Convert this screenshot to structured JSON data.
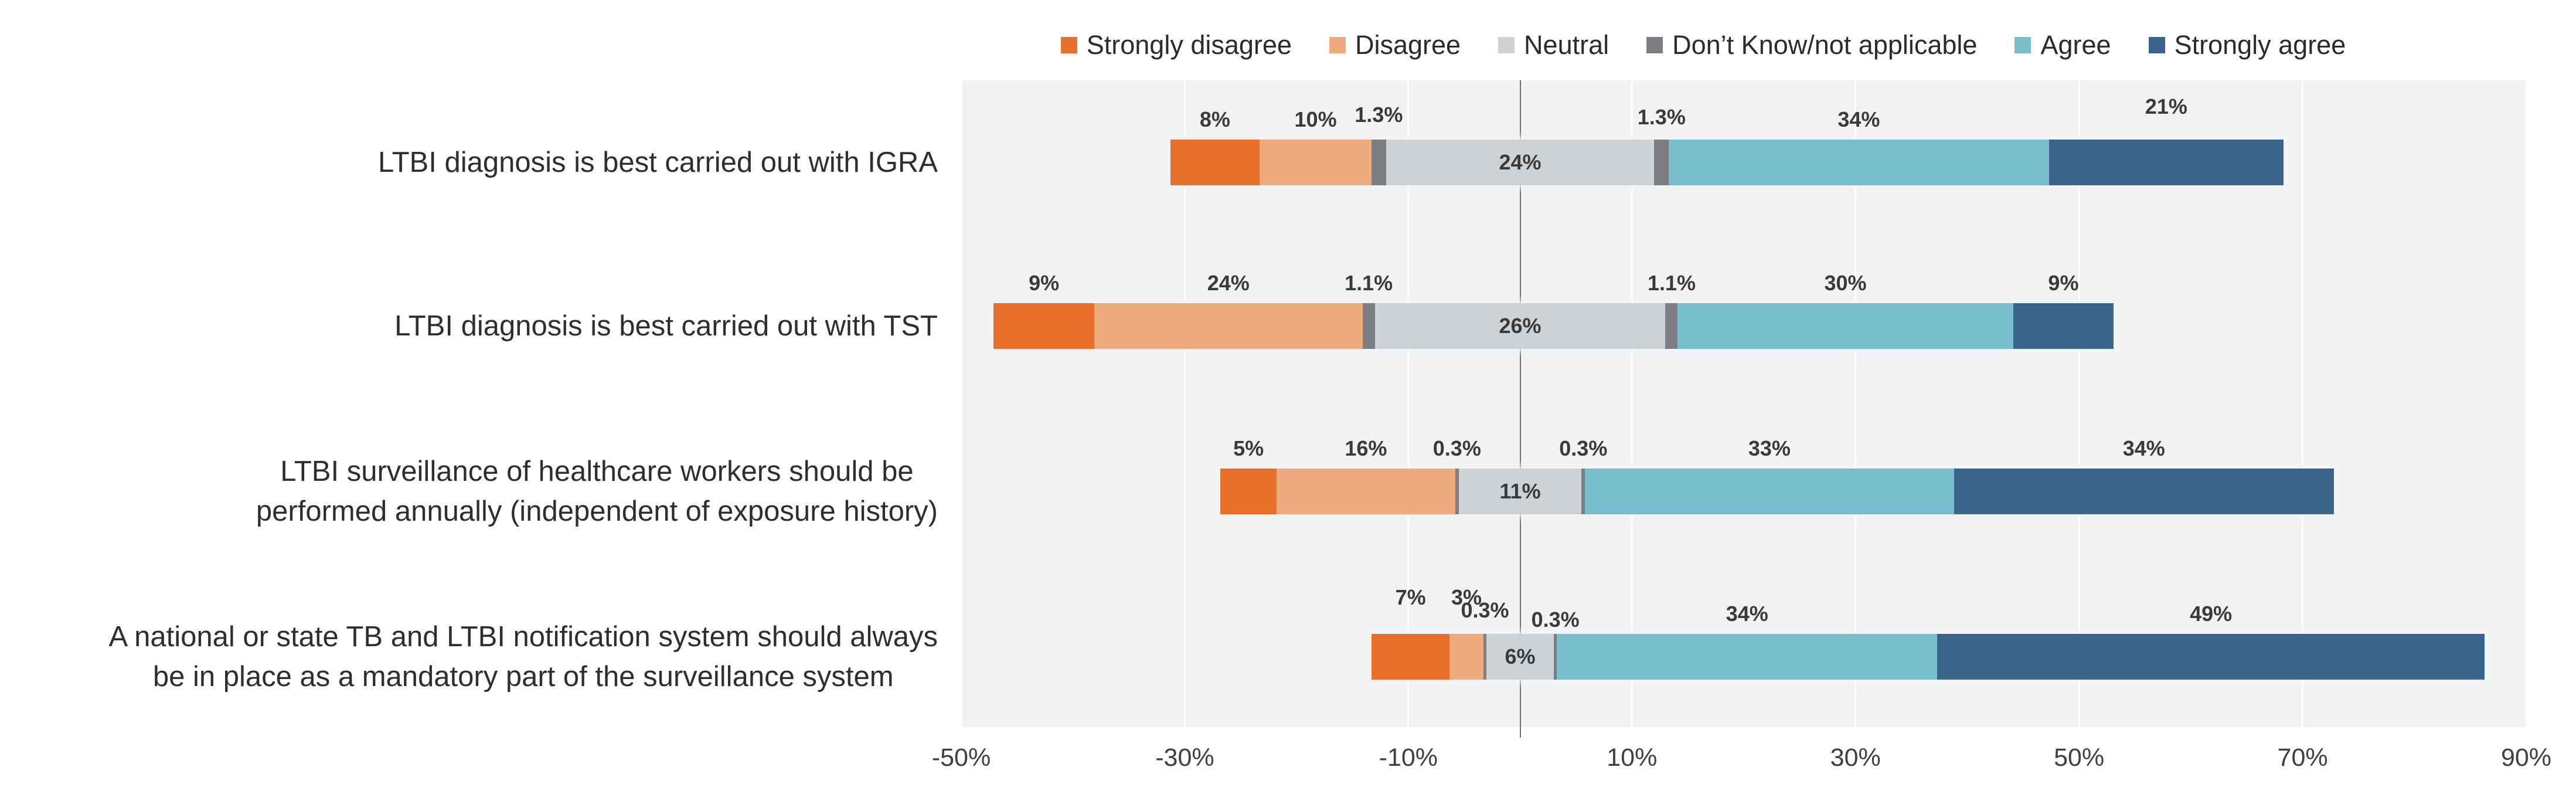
{
  "colors": {
    "strongly_disagree": "#E7702A",
    "disagree": "#EFAA80",
    "neutral": "#CFD2D5",
    "dont_know": "#7D7E81",
    "agree": "#79BECD",
    "strongly_agree": "#3B648B",
    "plot_background": "#F2F2F2",
    "gridline": "#FFFFFF",
    "zero_line": "#6B6B6B"
  },
  "legend": {
    "items": [
      {
        "key": "strongly_disagree",
        "label": "Strongly disagree"
      },
      {
        "key": "disagree",
        "label": "Disagree"
      },
      {
        "key": "neutral",
        "label": "Neutral"
      },
      {
        "key": "dont_know",
        "label": "Don’t Know/not applicable"
      },
      {
        "key": "agree",
        "label": "Agree"
      },
      {
        "key": "strongly_agree",
        "label": "Strongly agree"
      }
    ]
  },
  "chart_data": {
    "type": "bar",
    "variant": "diverging stacked horizontal (Likert); Neutral and Don't Know segments straddle the zero line, Don't Know split as half-slivers on each side of Neutral",
    "legend_position": "top",
    "grid": true,
    "x_axis": {
      "min": -50,
      "max": 90,
      "tick_step": 20,
      "tick_values": [
        -50,
        -30,
        -10,
        10,
        30,
        50,
        70,
        90
      ],
      "tick_labels": [
        "-50%",
        "-30%",
        "-10%",
        "10%",
        "30%",
        "50%",
        "70%",
        "90%"
      ]
    },
    "rows": [
      {
        "category": "LTBI diagnosis is best carried out with IGRA",
        "strongly_disagree": 8,
        "disagree": 10,
        "dont_know_half": 1.3,
        "neutral": 24,
        "agree": 34,
        "strongly_agree": 21,
        "labels": {
          "strongly_disagree": "8%",
          "disagree": "10%",
          "dont_know_left": "1.3%",
          "neutral": "24%",
          "dont_know_right": "1.3%",
          "agree": "34%",
          "strongly_agree": "21%"
        }
      },
      {
        "category": "LTBI diagnosis is best carried out with TST",
        "strongly_disagree": 9,
        "disagree": 24,
        "dont_know_half": 1.1,
        "neutral": 26,
        "agree": 30,
        "strongly_agree": 9,
        "labels": {
          "strongly_disagree": "9%",
          "disagree": "24%",
          "dont_know_left": "1.1%",
          "neutral": "26%",
          "dont_know_right": "1.1%",
          "agree": "30%",
          "strongly_agree": "9%"
        }
      },
      {
        "category": "LTBI surveillance of healthcare workers should be\nperformed annually (independent of exposure history)",
        "strongly_disagree": 5,
        "disagree": 16,
        "dont_know_half": 0.3,
        "neutral": 11,
        "agree": 33,
        "strongly_agree": 34,
        "labels": {
          "strongly_disagree": "5%",
          "disagree": "16%",
          "dont_know_left": "0.3%",
          "neutral": "11%",
          "dont_know_right": "0.3%",
          "agree": "33%",
          "strongly_agree": "34%"
        }
      },
      {
        "category": "A national or state TB and LTBI notification system should always\nbe in place as a mandatory part of the surveillance system",
        "strongly_disagree": 7,
        "disagree": 3,
        "dont_know_half": 0.3,
        "neutral": 6,
        "agree": 34,
        "strongly_agree": 49,
        "labels": {
          "strongly_disagree": "7%",
          "disagree": "3%",
          "dont_know_left": "0.3%",
          "neutral": "6%",
          "dont_know_right": "0.3%",
          "agree": "34%",
          "strongly_agree": "49%"
        }
      }
    ]
  }
}
